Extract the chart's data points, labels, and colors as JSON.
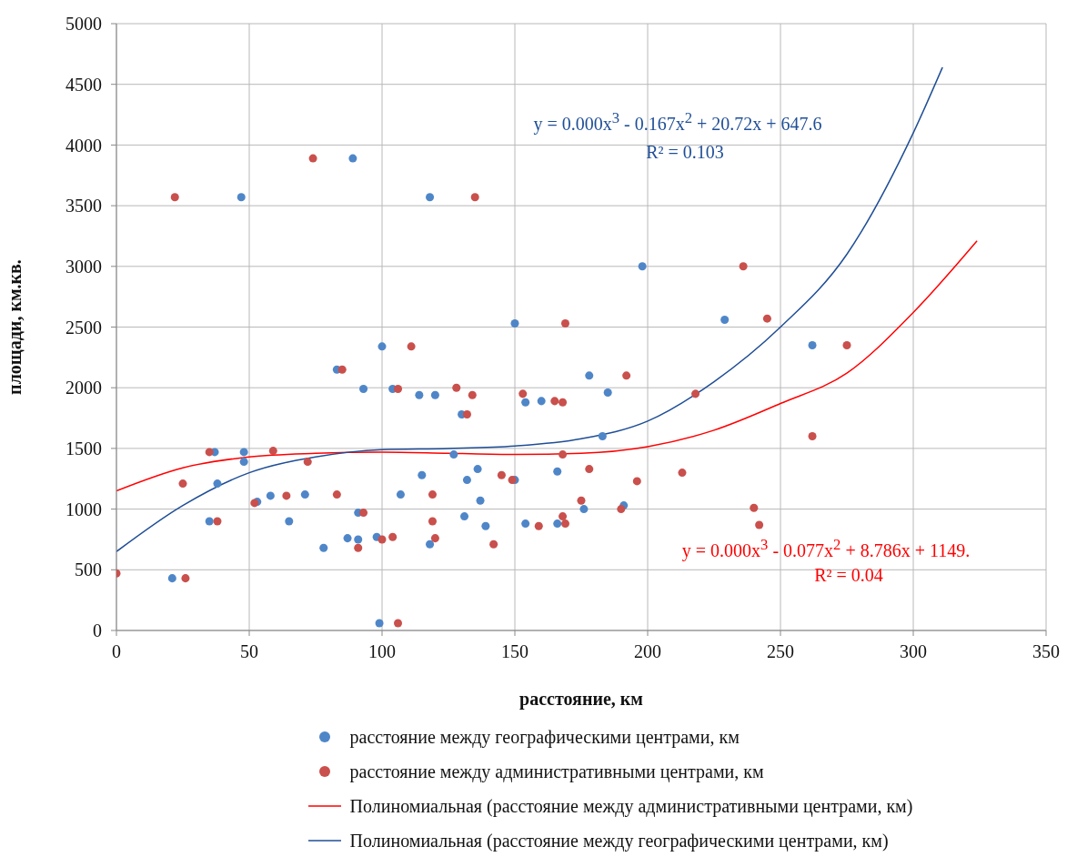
{
  "chart_data": {
    "type": "scatter",
    "xlabel": "расстояние, км",
    "ylabel": "площади, км.кв.",
    "xlim": [
      0,
      350
    ],
    "xticks": [
      0,
      50,
      100,
      150,
      200,
      250,
      300,
      350
    ],
    "ylim": [
      0,
      5000
    ],
    "yticks": [
      0,
      500,
      1000,
      1500,
      2000,
      2500,
      3000,
      3500,
      4000,
      4500,
      5000
    ],
    "grid": true,
    "legend": "bottom",
    "marker": "circle",
    "series": [
      {
        "name": "расстояние между географическими центрами, км",
        "color": "#4f86c8",
        "x": [
          21,
          47,
          89,
          118,
          198,
          150,
          100,
          229,
          262,
          83,
          93,
          104,
          37,
          48,
          48,
          38,
          53,
          58,
          71,
          107,
          91,
          35,
          65,
          87,
          91,
          98,
          78,
          99,
          178,
          114,
          120,
          130,
          154,
          160,
          185,
          183,
          127,
          115,
          136,
          132,
          150,
          166,
          137,
          176,
          191,
          131,
          139,
          154,
          166,
          118
        ],
        "values": [
          430,
          3570,
          3890,
          3570,
          3000,
          2530,
          2340,
          2560,
          2350,
          2150,
          1990,
          1990,
          1470,
          1470,
          1390,
          1210,
          1060,
          1110,
          1120,
          1120,
          970,
          900,
          900,
          760,
          750,
          770,
          680,
          60,
          2100,
          1940,
          1940,
          1780,
          1880,
          1890,
          1960,
          1600,
          1450,
          1280,
          1330,
          1240,
          1240,
          1310,
          1070,
          1000,
          1030,
          940,
          860,
          880,
          880,
          710
        ]
      },
      {
        "name": "расстояние между административными центрами, км",
        "color": "#c9504c",
        "x": [
          0,
          26,
          22,
          74,
          135,
          236,
          245,
          275,
          192,
          218,
          262,
          196,
          213,
          240,
          242,
          85,
          106,
          35,
          59,
          72,
          25,
          52,
          64,
          83,
          93,
          38,
          91,
          100,
          104,
          106,
          111,
          169,
          128,
          134,
          132,
          153,
          165,
          168,
          168,
          145,
          149,
          178,
          119,
          175,
          190,
          119,
          168,
          169,
          159,
          120,
          142
        ],
        "values": [
          470,
          430,
          3570,
          3890,
          3570,
          3000,
          2570,
          2350,
          2100,
          1950,
          1600,
          1230,
          1300,
          1010,
          870,
          2150,
          1990,
          1470,
          1480,
          1390,
          1210,
          1050,
          1110,
          1120,
          970,
          900,
          680,
          750,
          770,
          60,
          2340,
          2530,
          2000,
          1940,
          1780,
          1950,
          1890,
          1880,
          1450,
          1280,
          1240,
          1330,
          1120,
          1070,
          1000,
          900,
          940,
          880,
          860,
          760,
          710
        ]
      },
      {
        "name": "Полиномиальная (расстояние между административными центрами, км)",
        "type": "line",
        "marker": "none",
        "line_style": "solid",
        "color": "#ff0000",
        "x": [
          0,
          25,
          50,
          75,
          100,
          125,
          150,
          175,
          200,
          225,
          250,
          275,
          300,
          324
        ],
        "values": [
          1150,
          1340,
          1430,
          1460,
          1470,
          1460,
          1450,
          1460,
          1515,
          1650,
          1870,
          2120,
          2620,
          3210
        ]
      },
      {
        "name": "Полиномиальная (расстояние между географическими центрами, км)",
        "type": "line",
        "marker": "none",
        "line_style": "solid",
        "color": "#1f4e96",
        "x": [
          0,
          25,
          50,
          75,
          100,
          125,
          150,
          175,
          200,
          225,
          250,
          275,
          300,
          311
        ],
        "values": [
          650,
          1030,
          1300,
          1430,
          1490,
          1500,
          1520,
          1580,
          1725,
          2050,
          2500,
          3100,
          4100,
          4640
        ]
      }
    ],
    "annotations": [
      "y = 0.000x$^{3}$ - 0.167x$^{2}$ + 20.72x + 647.6",
      "R² = 0.103",
      "y = 0.000x$^{3}$ - 0.077x$^{2}$ + 8.786x + 1149.",
      "R² = 0.04"
    ]
  }
}
